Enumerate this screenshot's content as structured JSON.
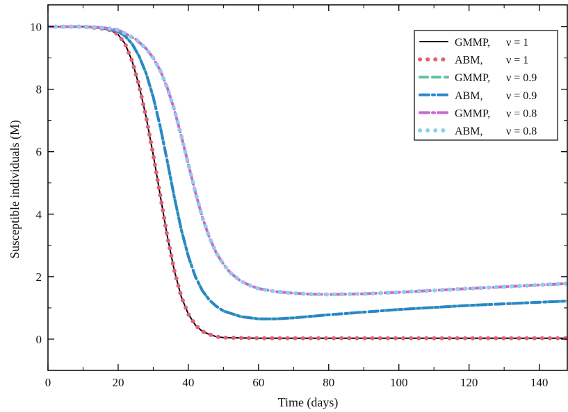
{
  "chart_data": {
    "type": "line",
    "xlabel": "Time (days)",
    "ylabel": "Susceptible individuals (M)",
    "xlim": [
      0,
      148
    ],
    "ylim": [
      -1,
      10.7
    ],
    "x_ticks": [
      0,
      20,
      40,
      60,
      80,
      100,
      120,
      140
    ],
    "y_ticks": [
      0,
      2,
      4,
      6,
      8,
      10
    ],
    "x_tick_labels": [
      "0",
      "20",
      "40",
      "60",
      "80",
      "100",
      "120",
      "140"
    ],
    "y_tick_labels": [
      "0",
      "2",
      "4",
      "6",
      "8",
      "10"
    ],
    "grid": false,
    "legend_position": "top-right",
    "series": [
      {
        "name": "GMMP,  ν = 1",
        "label_left": "GMMP,",
        "label_right": "ν = 1",
        "style": "solid",
        "color": "#000000",
        "x": [
          0,
          10,
          15,
          18,
          20,
          22,
          24,
          26,
          28,
          30,
          32,
          34,
          36,
          38,
          40,
          42,
          44,
          46,
          48,
          50,
          55,
          60,
          80,
          100,
          120,
          148
        ],
        "y": [
          10.0,
          10.0,
          9.95,
          9.88,
          9.75,
          9.45,
          8.9,
          8.1,
          7.1,
          5.9,
          4.6,
          3.3,
          2.2,
          1.35,
          0.8,
          0.45,
          0.25,
          0.15,
          0.08,
          0.05,
          0.04,
          0.03,
          0.03,
          0.03,
          0.03,
          0.03
        ]
      },
      {
        "name": "ABM,     ν = 1",
        "label_left": "ABM,",
        "label_right": "ν = 1",
        "style": "dotted",
        "color": "#e0607a",
        "x": [
          0,
          10,
          15,
          18,
          20,
          22,
          24,
          26,
          28,
          30,
          32,
          34,
          36,
          38,
          40,
          42,
          44,
          46,
          48,
          50,
          55,
          60,
          80,
          100,
          120,
          148
        ],
        "y": [
          10.0,
          10.0,
          9.95,
          9.88,
          9.75,
          9.45,
          8.9,
          8.1,
          7.1,
          5.9,
          4.6,
          3.3,
          2.2,
          1.35,
          0.8,
          0.45,
          0.25,
          0.15,
          0.08,
          0.05,
          0.04,
          0.03,
          0.03,
          0.03,
          0.03,
          0.03
        ]
      },
      {
        "name": "GMMP,  ν = 0.9",
        "label_left": "GMMP,",
        "label_right": "ν = 0.9",
        "style": "dashed",
        "color": "#5fc0a8",
        "x": [
          0,
          10,
          15,
          20,
          22,
          24,
          26,
          28,
          30,
          32,
          34,
          36,
          38,
          40,
          42,
          44,
          46,
          48,
          50,
          55,
          60,
          65,
          70,
          80,
          100,
          120,
          148
        ],
        "y": [
          10.0,
          10.0,
          9.97,
          9.85,
          9.7,
          9.45,
          9.05,
          8.5,
          7.75,
          6.8,
          5.7,
          4.55,
          3.5,
          2.65,
          2.0,
          1.55,
          1.25,
          1.05,
          0.9,
          0.72,
          0.65,
          0.65,
          0.68,
          0.78,
          0.95,
          1.08,
          1.22
        ]
      },
      {
        "name": "ABM,     ν = 0.9",
        "label_left": "ABM,",
        "label_right": "ν = 0.9",
        "style": "dashdot",
        "color": "#2a86c8",
        "x": [
          0,
          10,
          15,
          20,
          22,
          24,
          26,
          28,
          30,
          32,
          34,
          36,
          38,
          40,
          42,
          44,
          46,
          48,
          50,
          55,
          60,
          65,
          70,
          80,
          100,
          120,
          148
        ],
        "y": [
          10.0,
          10.0,
          9.97,
          9.85,
          9.7,
          9.45,
          9.05,
          8.5,
          7.75,
          6.8,
          5.7,
          4.55,
          3.5,
          2.65,
          2.0,
          1.55,
          1.25,
          1.05,
          0.9,
          0.72,
          0.65,
          0.65,
          0.68,
          0.78,
          0.95,
          1.08,
          1.22
        ]
      },
      {
        "name": "GMMP,  ν = 0.8",
        "label_left": "GMMP,",
        "label_right": "ν = 0.8",
        "style": "dashdot",
        "color": "#c86ad2",
        "x": [
          0,
          10,
          15,
          20,
          25,
          28,
          30,
          32,
          34,
          36,
          38,
          40,
          42,
          44,
          46,
          48,
          50,
          52,
          55,
          58,
          60,
          65,
          70,
          75,
          80,
          90,
          100,
          120,
          148
        ],
        "y": [
          10.0,
          10.0,
          9.98,
          9.9,
          9.6,
          9.3,
          9.0,
          8.6,
          8.05,
          7.35,
          6.5,
          5.6,
          4.7,
          3.9,
          3.25,
          2.75,
          2.4,
          2.12,
          1.85,
          1.7,
          1.62,
          1.52,
          1.47,
          1.44,
          1.43,
          1.45,
          1.5,
          1.62,
          1.78
        ]
      },
      {
        "name": "ABM,     ν = 0.8",
        "label_left": "ABM,",
        "label_right": "ν = 0.8",
        "style": "dotted",
        "color": "#8ed0e6",
        "x": [
          0,
          10,
          15,
          20,
          25,
          28,
          30,
          32,
          34,
          36,
          38,
          40,
          42,
          44,
          46,
          48,
          50,
          52,
          55,
          58,
          60,
          65,
          70,
          75,
          80,
          90,
          100,
          120,
          148
        ],
        "y": [
          10.0,
          10.0,
          9.98,
          9.9,
          9.6,
          9.3,
          9.0,
          8.6,
          8.05,
          7.35,
          6.5,
          5.6,
          4.7,
          3.9,
          3.25,
          2.75,
          2.4,
          2.12,
          1.85,
          1.7,
          1.62,
          1.52,
          1.47,
          1.44,
          1.43,
          1.45,
          1.5,
          1.62,
          1.78
        ]
      }
    ]
  }
}
